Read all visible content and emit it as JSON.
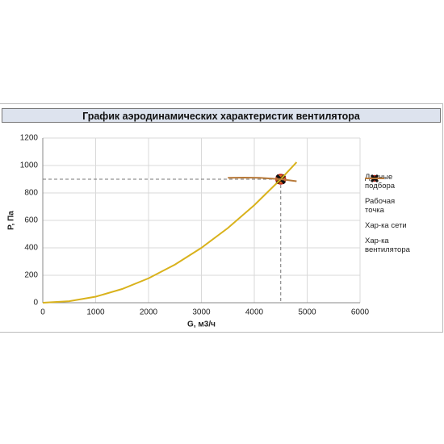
{
  "chart_data": {
    "type": "line",
    "title": "График аэродинамических характеристик вентилятора",
    "xlabel": "G, м3/ч",
    "ylabel": "P, Па",
    "xlim": [
      0,
      6000
    ],
    "xticks": [
      0,
      1000,
      2000,
      3000,
      4000,
      5000,
      6000
    ],
    "ylim": [
      0,
      1200
    ],
    "yticks": [
      0,
      200,
      400,
      600,
      800,
      1000,
      1200
    ],
    "grid": true,
    "legend": "right",
    "series": [
      {
        "name": "Данные подбора",
        "color": "#e8661e",
        "marker": "circle",
        "x": [
          4500
        ],
        "values": [
          900
        ]
      },
      {
        "name": "Рабочая точка",
        "color": "#111111",
        "marker": "cross",
        "x": [
          4500
        ],
        "values": [
          900
        ]
      },
      {
        "name": "Хар-ка сети",
        "color": "#d9b21c",
        "marker": "line",
        "x": [
          0,
          500,
          1000,
          1500,
          2000,
          2500,
          3000,
          3500,
          4000,
          4500,
          4800
        ],
        "values": [
          0,
          11,
          44,
          100,
          178,
          278,
          400,
          544,
          711,
          900,
          1024
        ]
      },
      {
        "name": "Хар-ка вентилятора",
        "color": "#b87a3a",
        "marker": "line",
        "x": [
          3500,
          3800,
          4100,
          4500,
          4800
        ],
        "values": [
          910,
          912,
          910,
          900,
          885
        ]
      }
    ]
  }
}
